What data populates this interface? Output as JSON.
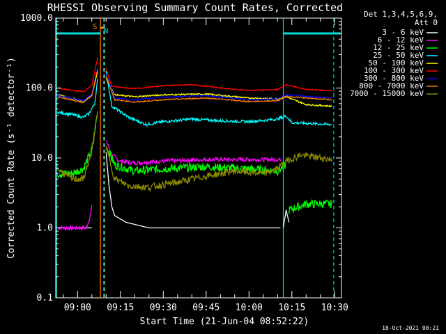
{
  "chart_data": {
    "type": "line",
    "title": "RHESSI Observing Summary Count Rates, Corrected",
    "xlabel": "Start Time (21-Jun-04 08:52:22)",
    "ylabel": "Corrected Count Rate (s⁻¹ detector⁻¹)",
    "yscale": "log",
    "ylim": [
      0.1,
      1000
    ],
    "xlim": [
      "08:52:22",
      "10:32:22"
    ],
    "x_ticks": [
      "09:00",
      "09:15",
      "09:30",
      "09:45",
      "10:00",
      "10:15",
      "10:30"
    ],
    "y_ticks": [
      "0.1",
      "1.0",
      "10.0",
      "100.0",
      "1000.0"
    ],
    "legend_header": [
      "Det 1,3,4,5,6,9,",
      "Att 0"
    ],
    "legend_position": "right",
    "footer": "18-Oct-2021 08:21",
    "markers": [
      {
        "label": "S",
        "color": "#ff8800",
        "from": "09:08:00",
        "to": "09:09:10"
      },
      {
        "label": "N",
        "color": "#00dddd",
        "from": "08:52:40",
        "to": "09:08:00"
      },
      {
        "label": "",
        "color": "#00dddd",
        "from": "10:12:00",
        "to": "10:32:00"
      }
    ],
    "vlines": [
      {
        "time": "08:52:40",
        "color": "#00dddd",
        "style": "solid"
      },
      {
        "time": "09:08:00",
        "color": "#ff8800",
        "style": "solid"
      },
      {
        "time": "09:09:10",
        "color": "#ff8800",
        "style": "dashed"
      },
      {
        "time": "09:09:30",
        "color": "#00dddd",
        "style": "dashed"
      },
      {
        "time": "10:12:00",
        "color": "#00dddd",
        "style": "solid"
      },
      {
        "time": "10:29:40",
        "color": "#00dddd",
        "style": "dashed"
      }
    ],
    "series": [
      {
        "name": "3 - 6 keV",
        "color": "#ffffff",
        "noise": 0,
        "segments": [
          [
            [
              "08:53",
              "1.0"
            ],
            [
              "09:05",
              "1.0"
            ]
          ],
          [
            [
              "09:10",
              "12"
            ],
            [
              "09:11",
              "4"
            ],
            [
              "09:12",
              "2"
            ],
            [
              "09:13",
              "1.5"
            ],
            [
              "09:17",
              "1.2"
            ],
            [
              "09:25",
              "1.0"
            ],
            [
              "09:40",
              "1.0"
            ],
            [
              "10:00",
              "1.0"
            ],
            [
              "10:11",
              "1.0"
            ]
          ],
          [
            [
              "10:12",
              "1.0"
            ],
            [
              "10:13",
              "1.8"
            ],
            [
              "10:14",
              "1.2"
            ]
          ]
        ]
      },
      {
        "name": "6 - 12 keV",
        "color": "#ff00ff",
        "noise": 0.03,
        "segments": [
          [
            [
              "08:53",
              "1.0"
            ],
            [
              "09:03",
              "1.0"
            ],
            [
              "09:04",
              "1.3"
            ],
            [
              "09:05",
              "2.0"
            ]
          ],
          [
            [
              "09:10",
              "18"
            ],
            [
              "09:12",
              "11"
            ],
            [
              "09:15",
              "9"
            ],
            [
              "09:20",
              "8.5"
            ],
            [
              "09:30",
              "9"
            ],
            [
              "09:45",
              "9.5"
            ],
            [
              "10:00",
              "9.5"
            ],
            [
              "10:11",
              "9.5"
            ]
          ]
        ]
      },
      {
        "name": "12 - 25 keV",
        "color": "#00ff00",
        "noise": 0.06,
        "segments": [
          [
            [
              "08:53",
              "6"
            ],
            [
              "08:58",
              "6"
            ],
            [
              "09:02",
              "7"
            ],
            [
              "09:05",
              "13"
            ],
            [
              "09:07",
              "45"
            ]
          ],
          [
            [
              "09:10",
              "15"
            ],
            [
              "09:13",
              "8"
            ],
            [
              "09:20",
              "6.5"
            ],
            [
              "09:30",
              "7"
            ],
            [
              "09:45",
              "7.5"
            ],
            [
              "10:00",
              "7"
            ],
            [
              "10:10",
              "6.5"
            ],
            [
              "10:13",
              "8"
            ]
          ],
          [
            [
              "10:14",
              "1.8"
            ],
            [
              "10:20",
              "2.2"
            ],
            [
              "10:29",
              "2.2"
            ]
          ]
        ]
      },
      {
        "name": "25 - 50 keV",
        "color": "#00ffff",
        "noise": 0.02,
        "segments": [
          [
            [
              "08:53",
              "45"
            ],
            [
              "08:58",
              "42"
            ],
            [
              "09:02",
              "38"
            ],
            [
              "09:04",
              "43"
            ],
            [
              "09:06",
              "60"
            ],
            [
              "09:07",
              "130"
            ]
          ],
          [
            [
              "09:10",
              "170"
            ],
            [
              "09:12",
              "55"
            ],
            [
              "09:18",
              "38"
            ],
            [
              "09:24",
              "30"
            ],
            [
              "09:30",
              "33"
            ],
            [
              "09:40",
              "36"
            ],
            [
              "09:50",
              "34"
            ],
            [
              "10:00",
              "33"
            ],
            [
              "10:10",
              "36"
            ],
            [
              "10:13",
              "40"
            ],
            [
              "10:15",
              "32"
            ],
            [
              "10:29",
              "30"
            ]
          ]
        ]
      },
      {
        "name": "50 - 100 keV",
        "color": "#ffff00",
        "noise": 0.01,
        "segments": [
          [
            [
              "08:53",
              "80"
            ],
            [
              "09:02",
              "65"
            ],
            [
              "09:05",
              "80"
            ],
            [
              "09:07",
              "170"
            ]
          ],
          [
            [
              "09:10",
              "140"
            ],
            [
              "09:13",
              "80"
            ],
            [
              "09:20",
              "75"
            ],
            [
              "09:30",
              "80"
            ],
            [
              "09:45",
              "82"
            ],
            [
              "10:00",
              "72"
            ],
            [
              "10:10",
              "70"
            ],
            [
              "10:13",
              "75"
            ],
            [
              "10:20",
              "58"
            ],
            [
              "10:29",
              "55"
            ]
          ]
        ]
      },
      {
        "name": "100 - 300 keV",
        "color": "#ff0000",
        "noise": 0.008,
        "segments": [
          [
            [
              "08:53",
              "100"
            ],
            [
              "09:02",
              "88"
            ],
            [
              "09:05",
              "110"
            ],
            [
              "09:07",
              "270"
            ]
          ],
          [
            [
              "09:10",
              "190"
            ],
            [
              "09:12",
              "105"
            ],
            [
              "09:20",
              "98"
            ],
            [
              "09:30",
              "108"
            ],
            [
              "09:40",
              "112"
            ],
            [
              "09:50",
              "100"
            ],
            [
              "10:00",
              "92"
            ],
            [
              "10:10",
              "95"
            ],
            [
              "10:13",
              "112"
            ],
            [
              "10:20",
              "95"
            ],
            [
              "10:29",
              "92"
            ]
          ]
        ]
      },
      {
        "name": "300 - 800 keV",
        "color": "#0000ff",
        "noise": 0.008,
        "segments": [
          [
            [
              "08:53",
              "78"
            ],
            [
              "09:02",
              "66"
            ],
            [
              "09:05",
              "82"
            ],
            [
              "09:07",
              "195"
            ]
          ],
          [
            [
              "09:10",
              "160"
            ],
            [
              "09:13",
              "72"
            ],
            [
              "09:20",
              "68"
            ],
            [
              "09:30",
              "74"
            ],
            [
              "09:45",
              "78"
            ],
            [
              "10:00",
              "68"
            ],
            [
              "10:10",
              "70"
            ],
            [
              "10:13",
              "80"
            ],
            [
              "10:20",
              "76"
            ],
            [
              "10:29",
              "72"
            ]
          ]
        ]
      },
      {
        "name": "800 - 7000 keV",
        "color": "#ff8000",
        "noise": 0.008,
        "segments": [
          [
            [
              "08:53",
              "75"
            ],
            [
              "09:02",
              "62"
            ],
            [
              "09:05",
              "78"
            ],
            [
              "09:07",
              "185"
            ]
          ],
          [
            [
              "09:10",
              "150"
            ],
            [
              "09:13",
              "68"
            ],
            [
              "09:20",
              "63"
            ],
            [
              "09:30",
              "68"
            ],
            [
              "09:45",
              "72"
            ],
            [
              "10:00",
              "64"
            ],
            [
              "10:10",
              "66"
            ],
            [
              "10:13",
              "76"
            ],
            [
              "10:20",
              "72"
            ],
            [
              "10:29",
              "68"
            ]
          ]
        ]
      },
      {
        "name": "7000 - 15000 keV",
        "color": "#888800",
        "noise": 0.05,
        "segments": [
          [
            [
              "08:53",
              "7"
            ],
            [
              "08:58",
              "5"
            ],
            [
              "09:02",
              "5"
            ],
            [
              "09:05",
              "12"
            ],
            [
              "09:07",
              "45"
            ]
          ],
          [
            [
              "09:10",
              "14"
            ],
            [
              "09:13",
              "5"
            ],
            [
              "09:18",
              "4"
            ],
            [
              "09:25",
              "3.8"
            ],
            [
              "09:35",
              "4.5"
            ],
            [
              "09:45",
              "5.5"
            ],
            [
              "09:55",
              "6.5"
            ],
            [
              "10:05",
              "6"
            ],
            [
              "10:10",
              "7"
            ],
            [
              "10:13",
              "9"
            ],
            [
              "10:18",
              "11"
            ],
            [
              "10:29",
              "9.5"
            ]
          ]
        ]
      }
    ]
  }
}
